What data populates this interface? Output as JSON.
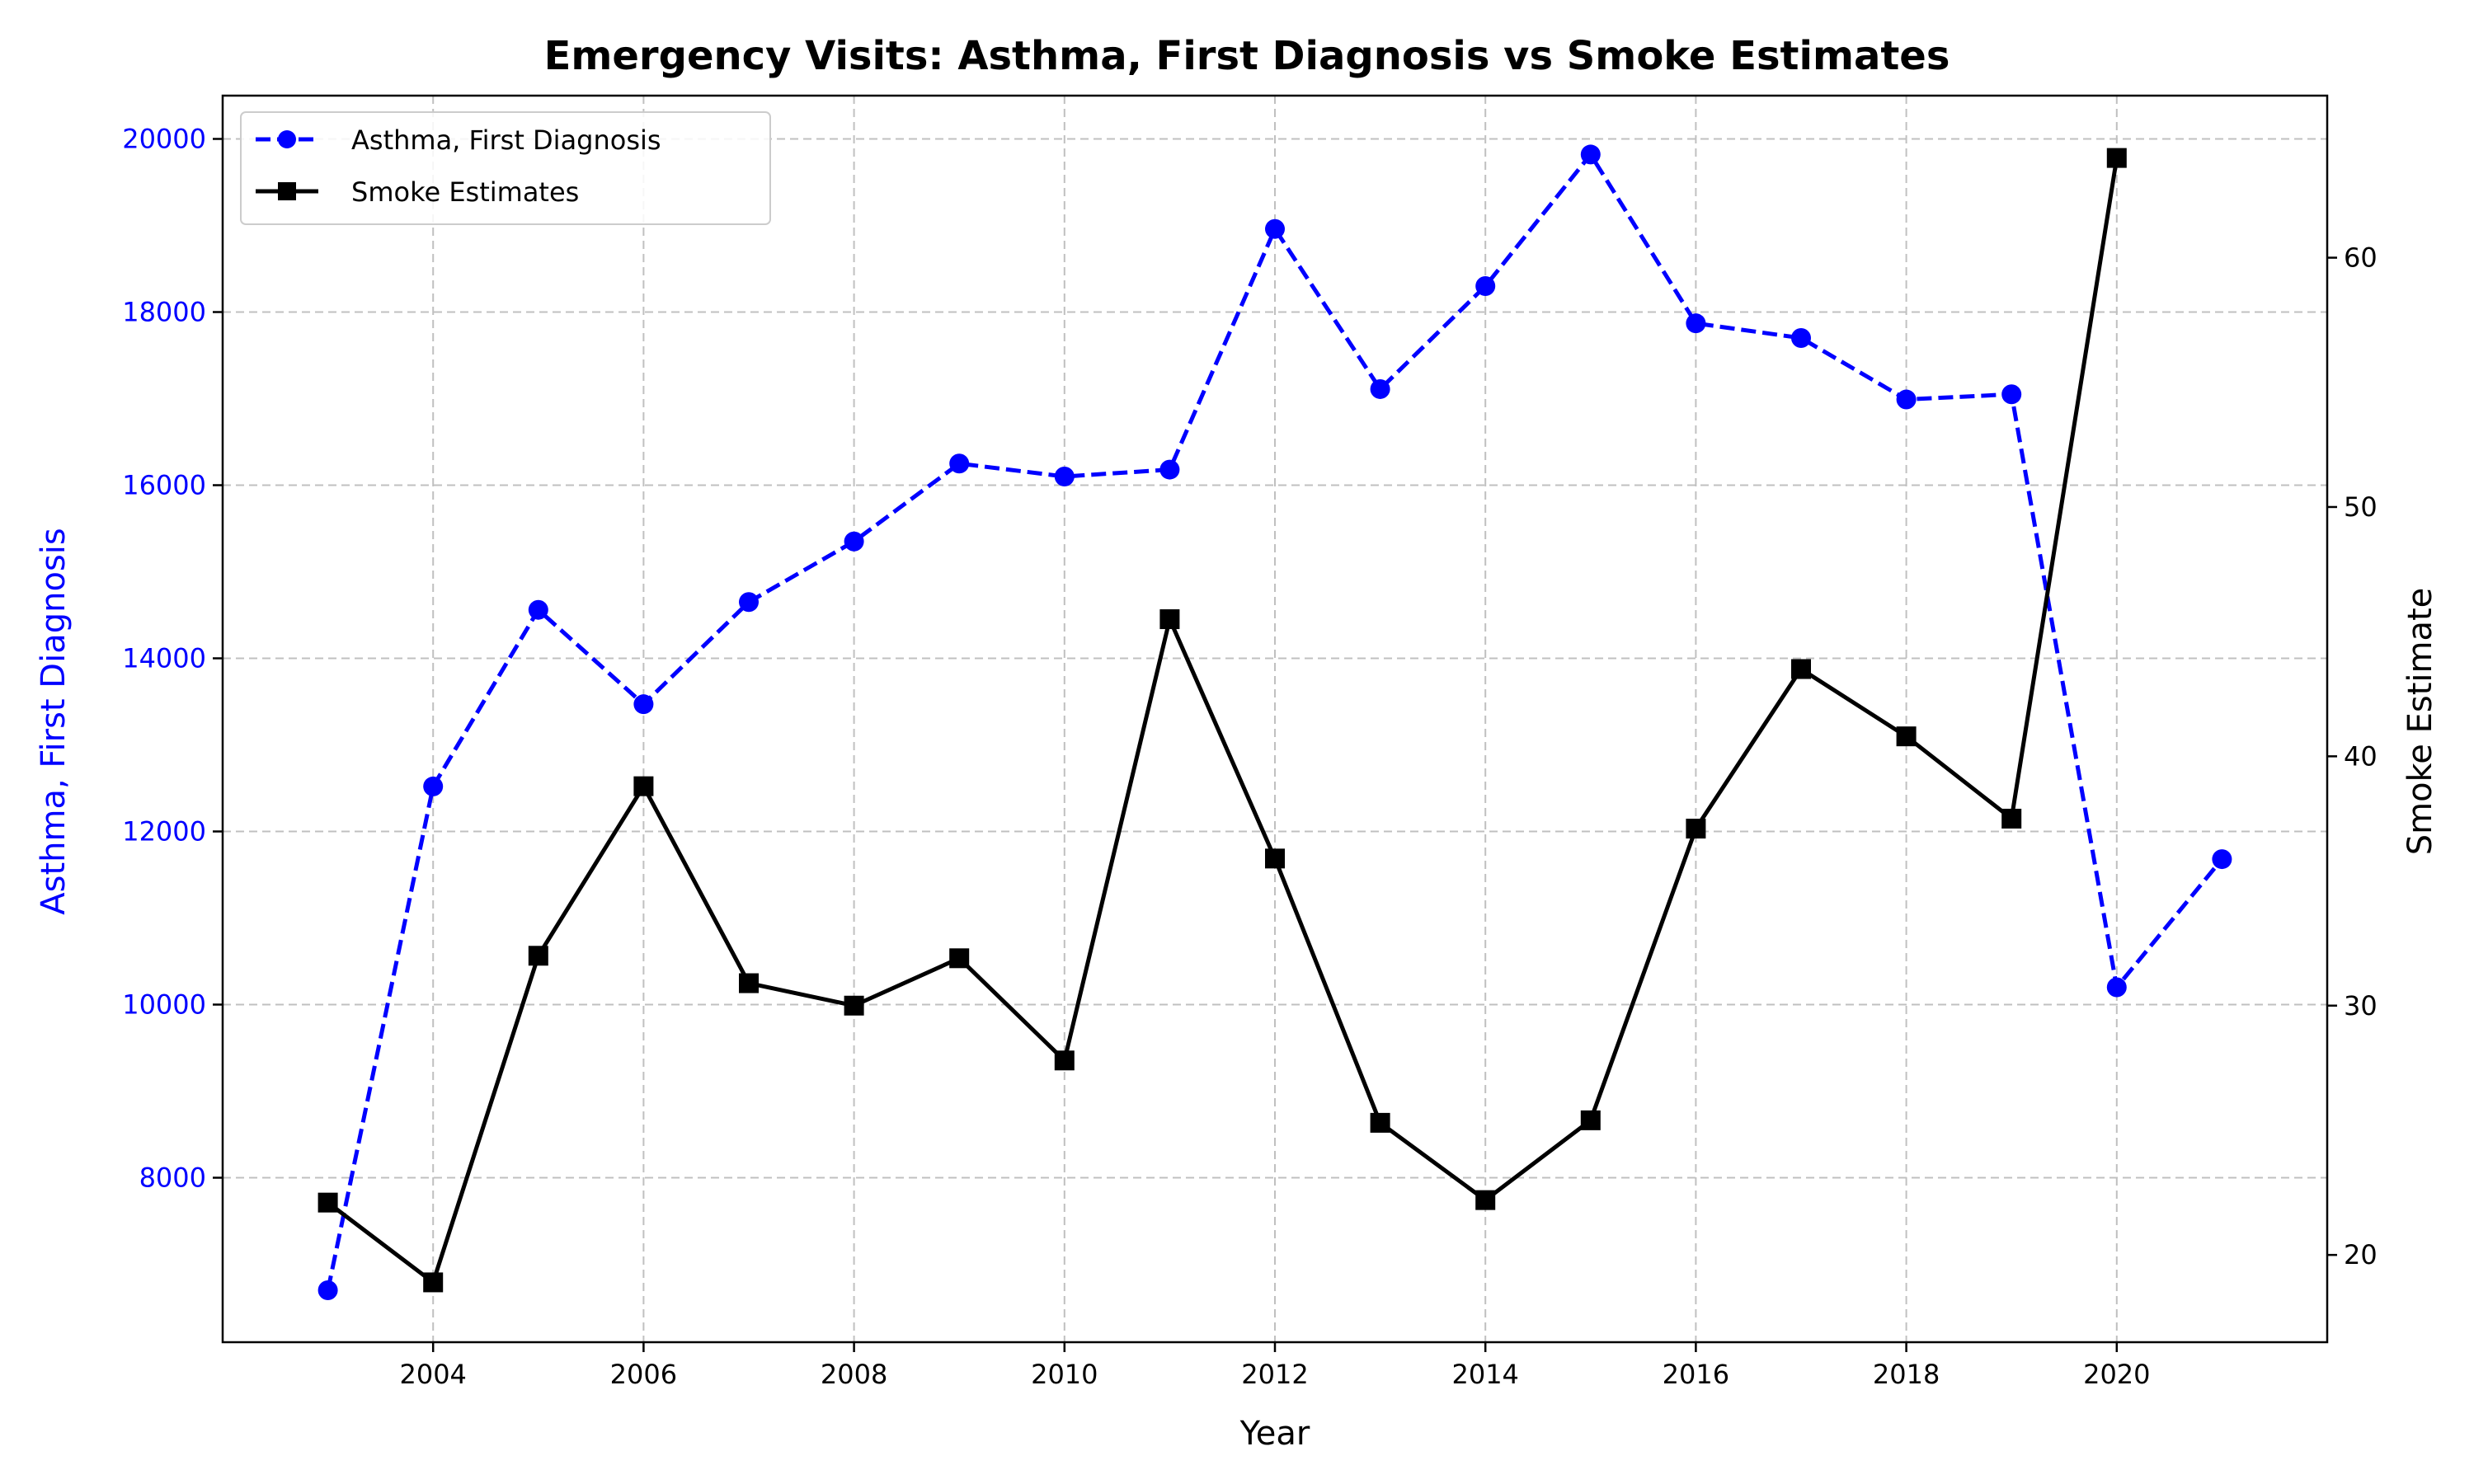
{
  "chart_data": {
    "type": "line",
    "title": "Emergency Visits: Asthma, First Diagnosis vs Smoke Estimates",
    "xlabel": "Year",
    "ylabel_left": "Asthma, First Diagnosis",
    "ylabel_right": "Smoke Estimate",
    "xlim": [
      2002,
      2022
    ],
    "ylim_left": [
      6100,
      20500
    ],
    "ylim_right": [
      16.5,
      66.5
    ],
    "x_ticks": [
      2004,
      2006,
      2008,
      2010,
      2012,
      2014,
      2016,
      2018,
      2020
    ],
    "y_ticks_left": [
      8000,
      10000,
      12000,
      14000,
      16000,
      18000,
      20000
    ],
    "y_ticks_right": [
      20,
      30,
      40,
      50,
      60
    ],
    "grid": true,
    "legend_position": "upper-left",
    "series": [
      {
        "name": "Asthma, First Diagnosis",
        "axis": "left",
        "color": "#0000ff",
        "line_style": "dashed",
        "marker": "circle",
        "x": [
          2003,
          2004,
          2005,
          2006,
          2007,
          2008,
          2009,
          2010,
          2011,
          2012,
          2013,
          2014,
          2015,
          2016,
          2017,
          2018,
          2019,
          2020,
          2021
        ],
        "values": [
          6700,
          12520,
          14560,
          13470,
          14650,
          15350,
          16250,
          16100,
          16180,
          18960,
          17110,
          18300,
          19820,
          17870,
          17700,
          16990,
          17050,
          10200,
          11680
        ]
      },
      {
        "name": "Smoke Estimates",
        "axis": "right",
        "color": "#000000",
        "line_style": "solid",
        "marker": "square",
        "x": [
          2003,
          2004,
          2005,
          2006,
          2007,
          2008,
          2009,
          2010,
          2011,
          2012,
          2013,
          2014,
          2015,
          2016,
          2017,
          2018,
          2019,
          2020
        ],
        "values": [
          22.1,
          18.9,
          32.0,
          38.8,
          30.9,
          30.0,
          31.9,
          27.8,
          45.5,
          35.9,
          25.3,
          22.2,
          25.4,
          37.1,
          43.5,
          40.8,
          37.5,
          64.0
        ]
      }
    ]
  }
}
